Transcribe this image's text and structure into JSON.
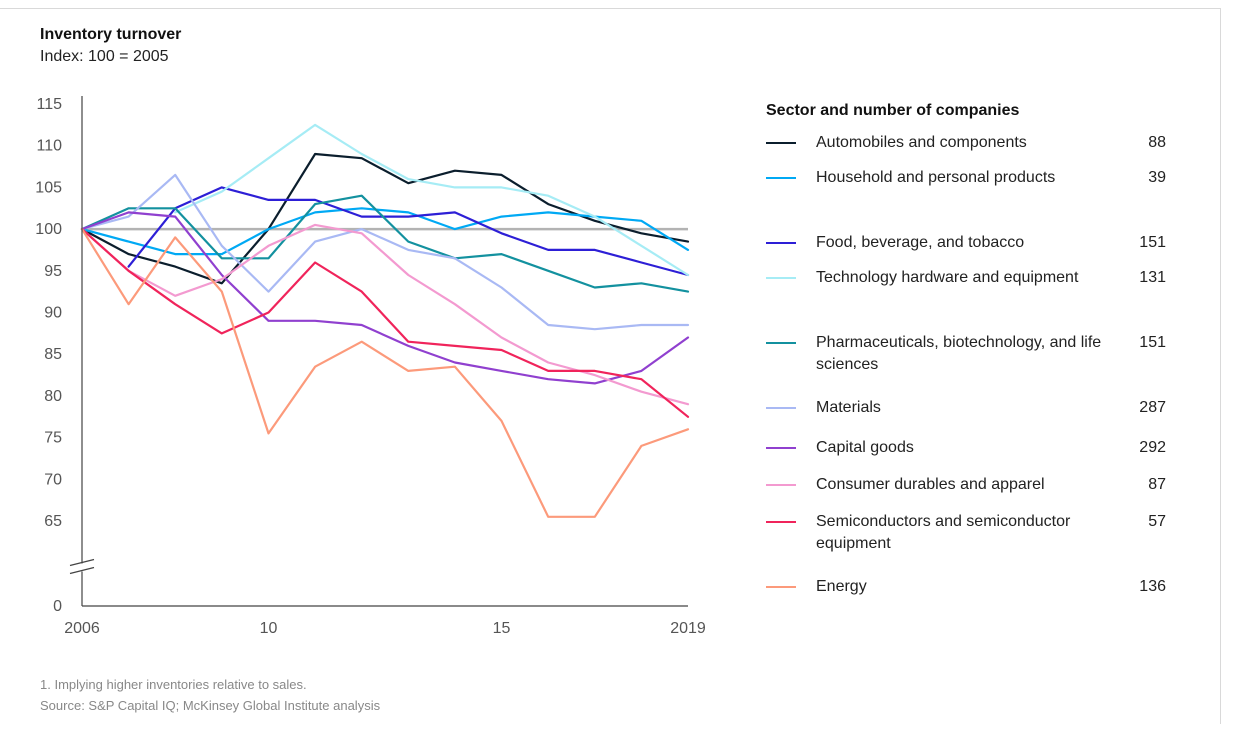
{
  "header": {
    "title": "Inventory turnover",
    "subtitle": "Index: 100 = 2005"
  },
  "legend": {
    "title": "Sector and number of companies"
  },
  "footer": {
    "note": "1. Implying higher inventories relative to sales.",
    "source": "Source: S&P Capital IQ; McKinsey Global Institute analysis"
  },
  "chart_data": {
    "type": "line",
    "x": [
      2006,
      2007,
      2008,
      2009,
      2010,
      2011,
      2012,
      2013,
      2014,
      2015,
      2016,
      2017,
      2018,
      2019
    ],
    "xticks": [
      "2006",
      "10",
      "15",
      "2019"
    ],
    "yticks": [
      "0",
      "65",
      "70",
      "75",
      "80",
      "85",
      "90",
      "95",
      "100",
      "105",
      "110",
      "115"
    ],
    "ylim": [
      65,
      115
    ],
    "axis_break": "0 to 65",
    "reference_line": 100,
    "series": [
      {
        "name": "Automobiles and components",
        "count": "88",
        "color": "#0b1e2d",
        "values": [
          100,
          97,
          95.5,
          93.5,
          100,
          109,
          108.5,
          105.5,
          107,
          106.5,
          103,
          101,
          99.5,
          98.5
        ]
      },
      {
        "name": "Household and personal products",
        "count": "39",
        "color": "#00a9f4",
        "values": [
          100,
          98.5,
          97,
          97,
          100,
          102,
          102.5,
          102,
          100,
          101.5,
          102,
          101.5,
          101,
          97.5
        ]
      },
      {
        "name": "Food, beverage, and tobacco",
        "count": "151",
        "color": "#2d1fd6",
        "values": [
          null,
          95.5,
          102.5,
          105,
          103.5,
          103.5,
          101.5,
          101.5,
          102,
          99.5,
          97.5,
          97.5,
          96,
          94.5
        ]
      },
      {
        "name": "Technology hardware and equipment",
        "count": "131",
        "color": "#a6ecf5",
        "values": [
          null,
          null,
          102,
          104.5,
          108.5,
          112.5,
          109,
          106,
          105,
          105,
          104,
          101.5,
          98,
          94.5
        ]
      },
      {
        "name": "Pharmaceuticals, biotechnology, and life sciences",
        "count": "151",
        "color": "#13919f",
        "values": [
          100,
          102.5,
          102.5,
          96.5,
          96.5,
          103,
          104,
          98.5,
          96.5,
          97,
          95,
          93,
          93.5,
          92.5
        ]
      },
      {
        "name": "Materials",
        "count": "287",
        "color": "#a9b9f4",
        "values": [
          100,
          101.5,
          106.5,
          98,
          92.5,
          98.5,
          100,
          97.5,
          96.5,
          93,
          88.5,
          88,
          88.5,
          88.5
        ]
      },
      {
        "name": "Capital goods",
        "count": "292",
        "color": "#9040cf",
        "values": [
          100,
          102,
          101.5,
          94.5,
          89,
          89,
          88.5,
          86,
          84,
          83,
          82,
          81.5,
          83,
          87
        ]
      },
      {
        "name": "Consumer durables and apparel",
        "count": "87",
        "color": "#f39ad0",
        "values": [
          100,
          95,
          92,
          94,
          98,
          100.5,
          99.5,
          94.5,
          91,
          87,
          84,
          82.5,
          80.5,
          79
        ]
      },
      {
        "name": "Semiconductors and semiconductor equipment",
        "count": "57",
        "color": "#f0245b",
        "values": [
          100,
          95,
          91,
          87.5,
          90,
          96,
          92.5,
          86.5,
          86,
          85.5,
          83,
          83,
          82,
          77.5
        ]
      },
      {
        "name": "Energy",
        "count": "136",
        "color": "#fc9a7b",
        "values": [
          100,
          91,
          99,
          92.5,
          75.5,
          83.5,
          86.5,
          83,
          83.5,
          77,
          65.5,
          65.5,
          74,
          76
        ]
      }
    ]
  }
}
